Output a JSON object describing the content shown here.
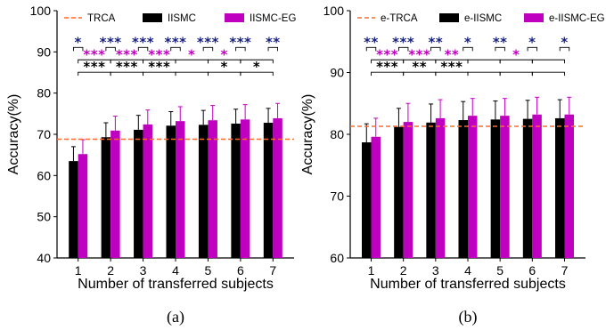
{
  "chart_data": [
    {
      "type": "bar",
      "panel_label": "(a)",
      "xlabel": "Number of transferred subjects",
      "ylabel": "Accuracy(%)",
      "ylim": [
        40,
        100
      ],
      "yticks": [
        40,
        50,
        60,
        70,
        80,
        90,
        100
      ],
      "categories": [
        "1",
        "2",
        "3",
        "4",
        "5",
        "6",
        "7"
      ],
      "legend_position": "top",
      "baseline": {
        "name": "TRCA",
        "value": 68.8,
        "color": "#ff6a2a",
        "style": "dashed"
      },
      "series": [
        {
          "name": "IISMC",
          "color": "#000000",
          "values": [
            63.5,
            69.3,
            71.1,
            72.1,
            72.3,
            72.6,
            72.8
          ],
          "errors": [
            3.5,
            3.5,
            3.5,
            3.4,
            3.5,
            3.5,
            3.5
          ]
        },
        {
          "name": "IISMC-EG",
          "color": "#c000c0",
          "values": [
            65.2,
            70.9,
            72.4,
            73.2,
            73.4,
            73.6,
            73.9
          ],
          "errors": [
            3.5,
            3.5,
            3.5,
            3.5,
            3.6,
            3.6,
            3.6
          ]
        }
      ],
      "significance": [
        {
          "row": 0,
          "color": "#1a237e",
          "marks": [
            "*",
            "***",
            "***",
            "***",
            "***",
            "***",
            "**"
          ],
          "type": "within"
        },
        {
          "row": 1,
          "color": "#c000c0",
          "marks": [
            "***",
            "***",
            "***",
            "*",
            "*",
            ""
          ],
          "type": "between"
        },
        {
          "row": 2,
          "color": "#000000",
          "marks": [
            "***",
            "***",
            "***",
            "",
            "*",
            "*"
          ],
          "type": "between"
        }
      ]
    },
    {
      "type": "bar",
      "panel_label": "(b)",
      "xlabel": "Number of transferred subjects",
      "ylabel": "Accuracy(%)",
      "ylim": [
        60,
        100
      ],
      "yticks": [
        60,
        70,
        80,
        90,
        100
      ],
      "categories": [
        "1",
        "2",
        "3",
        "4",
        "5",
        "6",
        "7"
      ],
      "legend_position": "top",
      "baseline": {
        "name": "e-TRCA",
        "value": 81.3,
        "color": "#ff6a2a",
        "style": "dashed"
      },
      "series": [
        {
          "name": "e-IISMC",
          "color": "#000000",
          "values": [
            78.7,
            81.2,
            81.9,
            82.3,
            82.4,
            82.5,
            82.6
          ],
          "errors": [
            3.0,
            3.0,
            3.0,
            3.0,
            3.0,
            3.0,
            3.0
          ]
        },
        {
          "name": "e-IISMC-EG",
          "color": "#c000c0",
          "values": [
            79.6,
            82.0,
            82.6,
            83.0,
            83.0,
            83.2,
            83.2
          ],
          "errors": [
            3.0,
            3.0,
            3.0,
            2.8,
            2.8,
            2.8,
            2.8
          ]
        }
      ],
      "significance": [
        {
          "row": 0,
          "color": "#1a237e",
          "marks": [
            "**",
            "***",
            "**",
            "*",
            "**",
            "*",
            "*"
          ],
          "type": "within"
        },
        {
          "row": 1,
          "color": "#c000c0",
          "marks": [
            "***",
            "***",
            "**",
            "",
            "*",
            ""
          ],
          "type": "between"
        },
        {
          "row": 2,
          "color": "#000000",
          "marks": [
            "***",
            "**",
            "***",
            "",
            "",
            ""
          ],
          "type": "between"
        }
      ]
    }
  ]
}
